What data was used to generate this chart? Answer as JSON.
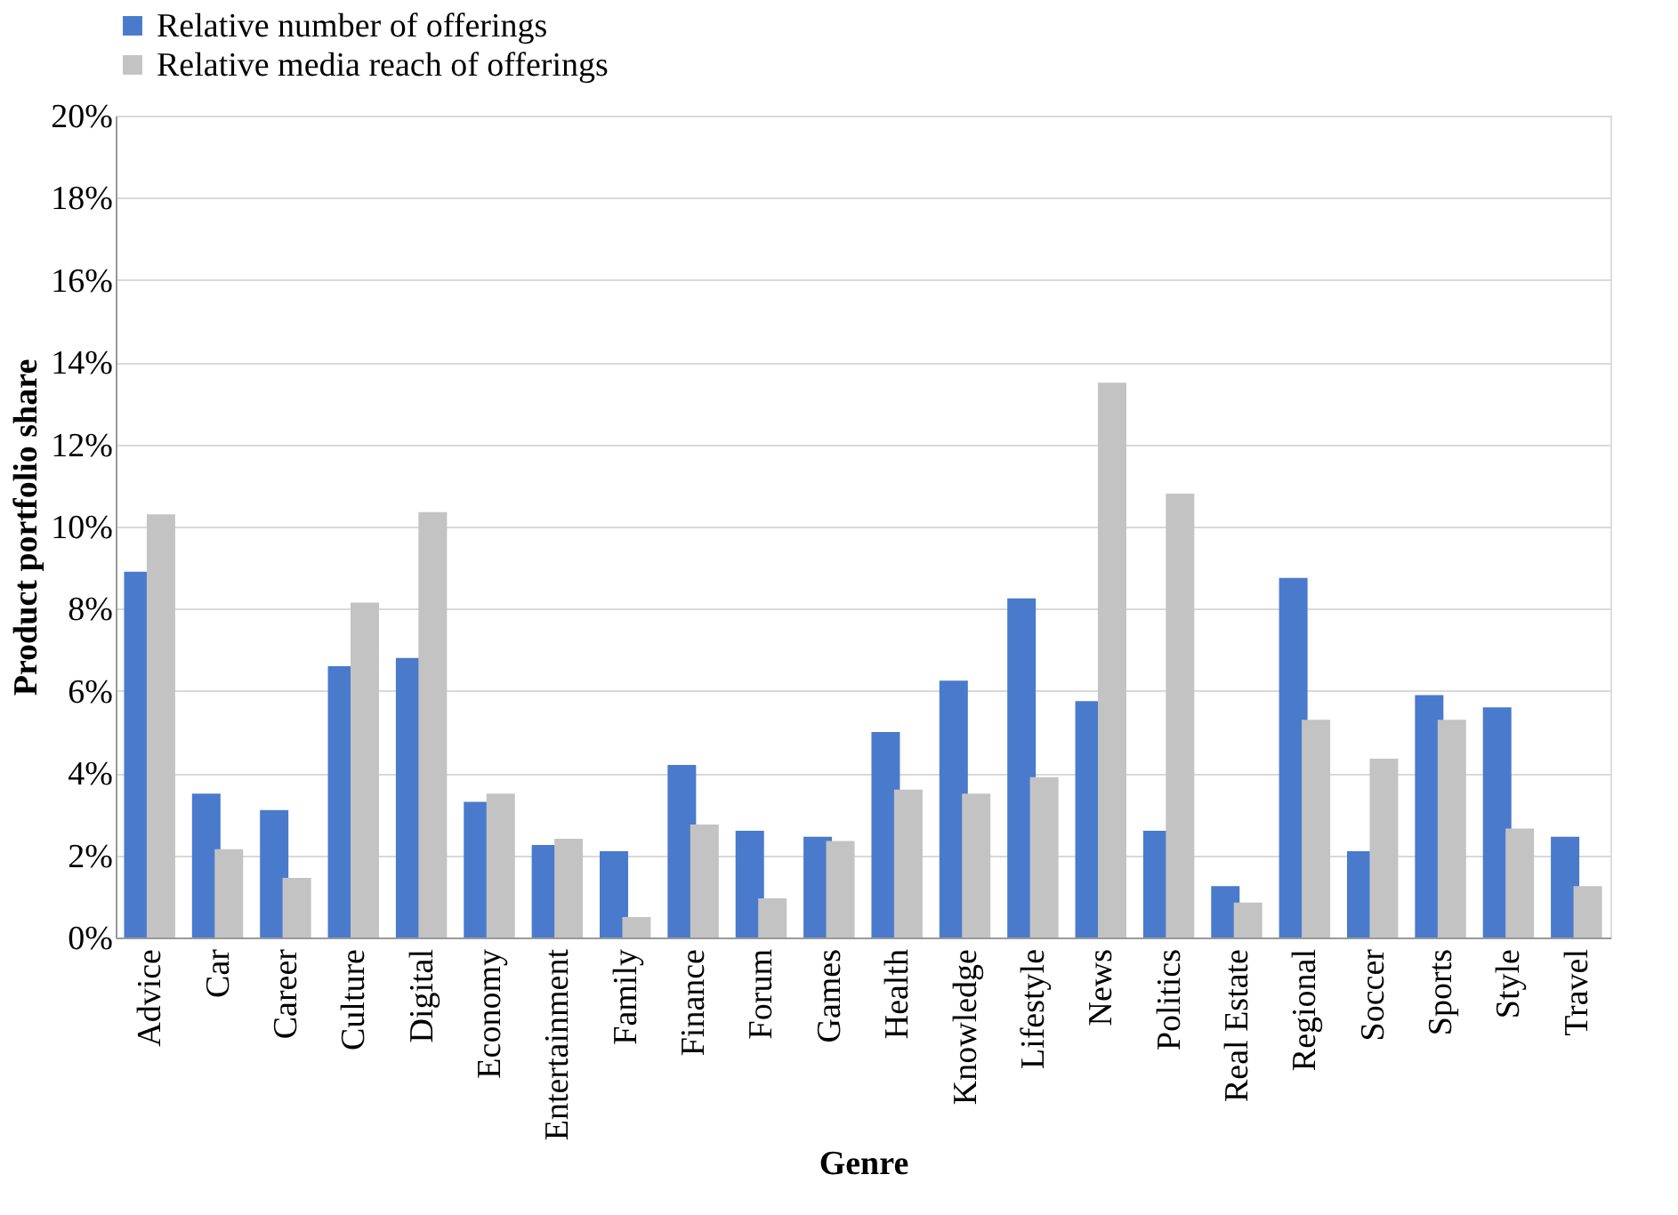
{
  "chart_data": {
    "type": "bar",
    "xlabel": "Genre",
    "ylabel": "Product portfolio share",
    "categories": [
      "Advice",
      "Car",
      "Career",
      "Culture",
      "Digital",
      "Economy",
      "Entertainment",
      "Family",
      "Finance",
      "Forum",
      "Games",
      "Health",
      "Knowledge",
      "Lifestyle",
      "News",
      "Politics",
      "Real Estate",
      "Regional",
      "Soccer",
      "Sports",
      "Style",
      "Travel"
    ],
    "series": [
      {
        "name": "Relative number of offerings",
        "color": "#4a7acb",
        "values": [
          8.9,
          3.5,
          3.1,
          6.6,
          6.8,
          3.3,
          2.25,
          2.1,
          4.2,
          2.6,
          2.45,
          5.0,
          6.25,
          8.25,
          5.75,
          2.6,
          1.25,
          8.75,
          2.1,
          5.9,
          5.6,
          2.45
        ]
      },
      {
        "name": "Relative media reach of offerings",
        "color": "#c3c3c3",
        "values": [
          10.3,
          2.15,
          1.45,
          8.15,
          10.35,
          3.5,
          2.4,
          0.5,
          2.75,
          0.95,
          2.35,
          3.6,
          3.5,
          3.9,
          13.5,
          10.8,
          0.85,
          5.3,
          4.35,
          5.3,
          2.65,
          1.25
        ]
      }
    ],
    "ylim": [
      0,
      20
    ],
    "yticks": [
      {
        "value": 0,
        "label": "0%"
      },
      {
        "value": 2,
        "label": "2%"
      },
      {
        "value": 4,
        "label": "4%"
      },
      {
        "value": 6,
        "label": "6%"
      },
      {
        "value": 8,
        "label": "8%"
      },
      {
        "value": 10,
        "label": "10%"
      },
      {
        "value": 12,
        "label": "12%"
      },
      {
        "value": 14,
        "label": "14%"
      },
      {
        "value": 16,
        "label": "16%"
      },
      {
        "value": 18,
        "label": "18%"
      },
      {
        "value": 20,
        "label": "20%"
      }
    ],
    "grid": "y",
    "legend": "top"
  }
}
